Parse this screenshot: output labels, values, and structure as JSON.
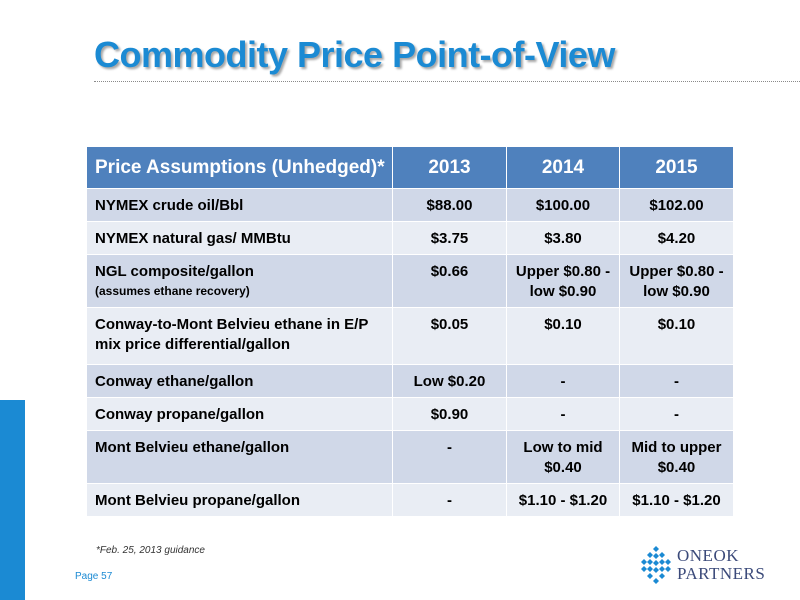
{
  "slide": {
    "title": "Commodity Price Point-of-View",
    "footnote": "*Feb. 25, 2013 guidance",
    "page_label": "Page 57"
  },
  "table": {
    "headers": [
      "Price Assumptions (Unhedged)*",
      "2013",
      "2014",
      "2015"
    ],
    "rows": [
      {
        "label": "NYMEX crude oil/Bbl",
        "sub": "",
        "v2013": "$88.00",
        "v2014": "$100.00",
        "v2015": "$102.00"
      },
      {
        "label": "NYMEX natural gas/ MMBtu",
        "sub": "",
        "v2013": "$3.75",
        "v2014": "$3.80",
        "v2015": "$4.20"
      },
      {
        "label": "NGL composite/gallon",
        "sub": "(assumes ethane recovery)",
        "v2013": "$0.66",
        "v2014": "Upper $0.80 - low $0.90",
        "v2015": "Upper $0.80 - low $0.90"
      },
      {
        "label": "Conway-to-Mont Belvieu ethane in E/P mix price differential/gallon",
        "sub": "",
        "v2013": "$0.05",
        "v2014": "$0.10",
        "v2015": "$0.10"
      },
      {
        "label": "Conway ethane/gallon",
        "sub": "",
        "v2013": "Low $0.20",
        "v2014": "-",
        "v2015": "-"
      },
      {
        "label": "Conway propane/gallon",
        "sub": "",
        "v2013": "$0.90",
        "v2014": "-",
        "v2015": "-"
      },
      {
        "label": "Mont Belvieu ethane/gallon",
        "sub": "",
        "v2013": "-",
        "v2014": "Low to mid $0.40",
        "v2015": "Mid to upper $0.40"
      },
      {
        "label": "Mont Belvieu propane/gallon",
        "sub": "",
        "v2013": "-",
        "v2014": "$1.10 - $1.20",
        "v2015": "$1.10 - $1.20"
      }
    ]
  },
  "logo": {
    "line1": "ONEOK",
    "line2": "PARTNERS",
    "icon": "oneok-diamond-icon"
  },
  "colors": {
    "accent": "#1b8ad3",
    "header_fill": "#4f81bd",
    "row_dark": "#d0d8e8",
    "row_light": "#e9edf4",
    "logo_text": "#3b4a7a"
  }
}
